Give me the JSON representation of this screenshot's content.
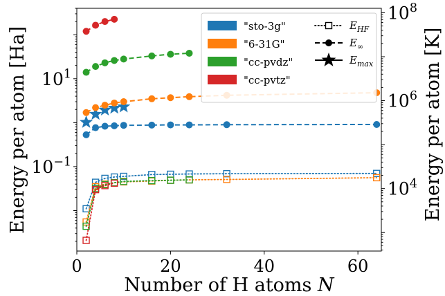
{
  "chart_data": {
    "type": "scatter",
    "xlabel": "Number of H atoms N",
    "ylabel_left": "Energy per atom [Ha]",
    "ylabel_right": "Energy per atom [K]",
    "xlim": [
      0,
      65
    ],
    "ylim": [
      0.0012,
      400
    ],
    "y_scale": "log",
    "x_ticks": [
      "0",
      "20",
      "40",
      "60"
    ],
    "x_tick_values": [
      0,
      20,
      40,
      60
    ],
    "y_left_ticks": [
      {
        "label": "10^{-1}",
        "base": "10",
        "exp": "−1",
        "value": 0.1
      },
      {
        "label": "10^{1}",
        "base": "10",
        "exp": "1",
        "value": 10
      }
    ],
    "y_right_ticks": [
      {
        "label": "10^{4}",
        "base": "10",
        "exp": "4",
        "value_K": 10000
      },
      {
        "label": "10^{6}",
        "base": "10",
        "exp": "6",
        "value_K": 1000000
      },
      {
        "label": "10^{8}",
        "base": "10",
        "exp": "8",
        "value_K": 100000000
      }
    ],
    "ha_to_k": 315775,
    "legend_position": "top-right",
    "basis_sets": [
      {
        "name": "\"sto-3g\"",
        "color": "#1f77b4",
        "E_HF": {
          "x": [
            2,
            4,
            6,
            8,
            10,
            16,
            20,
            24,
            32,
            64
          ],
          "y": [
            0.011,
            0.044,
            0.054,
            0.058,
            0.06,
            0.066,
            0.067,
            0.068,
            0.069,
            0.07
          ]
        },
        "E_inf": {
          "x": [
            2,
            4,
            6,
            8,
            10,
            16,
            20,
            24,
            32,
            64
          ],
          "y": [
            0.53,
            0.77,
            0.83,
            0.85,
            0.87,
            0.88,
            0.89,
            0.89,
            0.9,
            0.91
          ]
        },
        "E_max": {
          "x": [
            2,
            4,
            6,
            8,
            10
          ],
          "y": [
            1.02,
            1.56,
            1.95,
            2.15,
            2.3
          ]
        }
      },
      {
        "name": "\"6-31G\"",
        "color": "#ff7f0e",
        "E_HF": {
          "x": [
            2,
            4,
            6,
            8,
            10,
            16,
            20,
            24,
            32,
            64
          ],
          "y": [
            0.0055,
            0.035,
            0.04,
            0.043,
            0.045,
            0.047,
            0.049,
            0.05,
            0.051,
            0.056
          ]
        },
        "E_inf": {
          "x": [
            2,
            4,
            6,
            8,
            10,
            16,
            20,
            24,
            32,
            64
          ],
          "y": [
            1.7,
            2.2,
            2.5,
            2.8,
            3.0,
            3.5,
            3.7,
            3.9,
            4.2,
            4.8
          ]
        }
      },
      {
        "name": "\"cc-pvdz\"",
        "color": "#2ca02c",
        "E_HF": {
          "x": [
            2,
            4,
            6,
            8,
            10,
            16,
            20,
            24
          ],
          "y": [
            0.0044,
            0.032,
            0.039,
            0.043,
            0.046,
            0.048,
            0.049,
            0.05
          ]
        },
        "E_inf": {
          "x": [
            2,
            4,
            6,
            8,
            10,
            16,
            20,
            24
          ],
          "y": [
            14,
            19,
            23,
            26,
            28,
            33,
            36,
            38
          ]
        }
      },
      {
        "name": "\"cc-pvtz\"",
        "color": "#d62728",
        "E_HF": {
          "x": [
            2,
            4,
            6,
            8
          ],
          "y": [
            0.0021,
            0.03,
            0.037,
            0.042
          ]
        },
        "E_inf": {
          "x": [
            2,
            4,
            6,
            8
          ],
          "y": [
            120,
            165,
            200,
            225
          ]
        }
      }
    ],
    "style_legend": [
      {
        "key": "E_HF",
        "base": "E",
        "sub": "HF"
      },
      {
        "key": "E_inf",
        "base": "E",
        "sub": "∞"
      },
      {
        "key": "E_max",
        "base": "E",
        "sub": "max"
      }
    ]
  }
}
